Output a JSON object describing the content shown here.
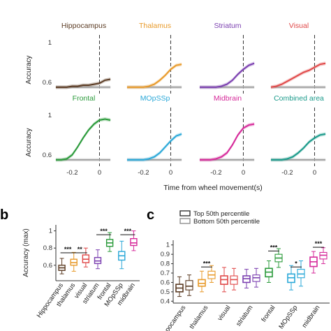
{
  "panel_letters": {
    "b": "b",
    "c": "c"
  },
  "colors": {
    "hippocampus": "#5a3a22",
    "thalamus": "#e89a2a",
    "striatum": "#7b3fb0",
    "visual": "#e04848",
    "frontal": "#2a9a3a",
    "mopssp": "#2aa8d8",
    "midbrain": "#d62a9a",
    "combined": "#1a9a8a",
    "chance": "#8a8a8a",
    "dashed": "#333333"
  },
  "icons": {
    "significance": "asterisk-icon"
  },
  "chart_data": [
    {
      "type": "line",
      "id": "a",
      "ylabel": "Accuracy",
      "xlabel": "Time from wheel movement(s)",
      "x": [
        -0.32,
        -0.28,
        -0.24,
        -0.2,
        -0.16,
        -0.12,
        -0.08,
        -0.04,
        0.0,
        0.04,
        0.08
      ],
      "xlim": [
        -0.33,
        0.1
      ],
      "ylim": [
        0.5,
        1.02
      ],
      "yticks": [
        0.6,
        1
      ],
      "ytick_labels": [
        "0.6",
        "1"
      ],
      "xticks": [
        -0.2,
        0
      ],
      "xtick_labels": [
        "-0.2",
        "0"
      ],
      "chance": [
        0.55,
        0.55,
        0.55,
        0.55,
        0.55,
        0.55,
        0.55,
        0.55,
        0.55,
        0.55,
        0.55
      ],
      "panels": [
        {
          "name": "Hippocampus",
          "color_key": "hippocampus",
          "values": [
            0.55,
            0.55,
            0.55,
            0.56,
            0.56,
            0.57,
            0.57,
            0.58,
            0.59,
            0.62,
            0.63
          ]
        },
        {
          "name": "Thalamus",
          "color_key": "thalamus",
          "values": [
            0.55,
            0.55,
            0.55,
            0.55,
            0.56,
            0.58,
            0.62,
            0.67,
            0.73,
            0.77,
            0.78
          ]
        },
        {
          "name": "Striatum",
          "color_key": "striatum",
          "values": [
            0.55,
            0.55,
            0.55,
            0.55,
            0.56,
            0.58,
            0.62,
            0.68,
            0.73,
            0.77,
            0.79
          ]
        },
        {
          "name": "Visual",
          "color_key": "visual",
          "values": [
            0.55,
            0.56,
            0.58,
            0.61,
            0.64,
            0.67,
            0.7,
            0.72,
            0.75,
            0.78,
            0.79
          ]
        },
        {
          "name": "Frontal",
          "color_key": "frontal",
          "values": [
            0.55,
            0.55,
            0.56,
            0.6,
            0.68,
            0.77,
            0.85,
            0.91,
            0.95,
            0.96,
            0.95
          ]
        },
        {
          "name": "MOpSSp",
          "color_key": "mopssp",
          "values": [
            0.55,
            0.55,
            0.55,
            0.55,
            0.56,
            0.58,
            0.62,
            0.68,
            0.74,
            0.79,
            0.81
          ]
        },
        {
          "name": "Midbrain",
          "color_key": "midbrain",
          "values": [
            0.55,
            0.55,
            0.55,
            0.56,
            0.58,
            0.62,
            0.7,
            0.8,
            0.87,
            0.9,
            0.91
          ]
        },
        {
          "name": "Combined area",
          "color_key": "combined",
          "values": [
            0.55,
            0.55,
            0.55,
            0.56,
            0.58,
            0.62,
            0.67,
            0.73,
            0.77,
            0.8,
            0.81
          ]
        }
      ]
    },
    {
      "type": "box",
      "id": "b",
      "ylabel": "Accuracy (max)",
      "ylim": [
        0.42,
        1.07
      ],
      "yticks": [
        0.6,
        0.8,
        1
      ],
      "ytick_labels": [
        "0.6",
        "0.8",
        "1"
      ],
      "categories": [
        "Hippocampus",
        "thalamus",
        "visual",
        "striatum",
        "frontal",
        "MOpSSp",
        "midbrain"
      ],
      "tick_labels": [
        "Hippocampus",
        "thalamus",
        "visual",
        "striatum",
        "frontal",
        "MOpSSp",
        "midbrain"
      ],
      "color_keys": [
        "hippocampus",
        "thalamus",
        "visual",
        "striatum",
        "frontal",
        "mopssp",
        "midbrain"
      ],
      "boxes": [
        {
          "min": 0.5,
          "q1": 0.54,
          "median": 0.57,
          "q3": 0.6,
          "max": 0.68
        },
        {
          "min": 0.53,
          "q1": 0.6,
          "median": 0.63,
          "q3": 0.67,
          "max": 0.75
        },
        {
          "min": 0.58,
          "q1": 0.63,
          "median": 0.67,
          "q3": 0.72,
          "max": 0.8
        },
        {
          "min": 0.56,
          "q1": 0.62,
          "median": 0.65,
          "q3": 0.69,
          "max": 0.78
        },
        {
          "min": 0.76,
          "q1": 0.82,
          "median": 0.86,
          "q3": 0.9,
          "max": 0.98
        },
        {
          "min": 0.56,
          "q1": 0.66,
          "median": 0.71,
          "q3": 0.76,
          "max": 0.88
        },
        {
          "min": 0.77,
          "q1": 0.83,
          "median": 0.86,
          "q3": 0.91,
          "max": 1.0
        }
      ],
      "significance": [
        {
          "from": 0,
          "to": 1,
          "y": 0.745,
          "label": "***"
        },
        {
          "from": 1,
          "to": 2,
          "y": 0.745,
          "label": "**"
        },
        {
          "from": 3,
          "to": 4,
          "y": 0.955,
          "label": "***"
        },
        {
          "from": 5,
          "to": 6,
          "y": 0.955,
          "label": "***"
        }
      ]
    },
    {
      "type": "box",
      "id": "c",
      "ylim": [
        0.38,
        1.05
      ],
      "yticks": [
        0.4,
        0.5,
        0.6,
        0.7,
        0.8,
        0.9,
        1
      ],
      "ytick_labels": [
        "0.4",
        "0.5",
        "0.6",
        "0.7",
        "0.8",
        "0.9",
        "1"
      ],
      "legend": [
        "Top 50th percentile",
        "Bottom 50th percentile"
      ],
      "legend_position": "top-left",
      "categories": [
        "hippocampus",
        "thalamus",
        "visual",
        "striatum",
        "frontal",
        "MOpSSp",
        "midbrain"
      ],
      "tick_labels": [
        "hippocampus",
        "thalamus",
        "visual",
        "striatum",
        "frontal",
        "MOpSSp",
        "midbrain"
      ],
      "color_keys": [
        "hippocampus",
        "thalamus",
        "visual",
        "striatum",
        "frontal",
        "mopssp",
        "midbrain"
      ],
      "series": [
        {
          "name": "Top 50th percentile",
          "boxes": [
            {
              "min": 0.45,
              "q1": 0.5,
              "median": 0.54,
              "q3": 0.58,
              "max": 0.66
            },
            {
              "min": 0.5,
              "q1": 0.56,
              "median": 0.59,
              "q3": 0.63,
              "max": 0.72
            },
            {
              "min": 0.5,
              "q1": 0.58,
              "median": 0.63,
              "q3": 0.67,
              "max": 0.76
            },
            {
              "min": 0.54,
              "q1": 0.6,
              "median": 0.64,
              "q3": 0.67,
              "max": 0.74
            },
            {
              "min": 0.6,
              "q1": 0.66,
              "median": 0.71,
              "q3": 0.75,
              "max": 0.83
            },
            {
              "min": 0.52,
              "q1": 0.6,
              "median": 0.65,
              "q3": 0.69,
              "max": 0.78
            },
            {
              "min": 0.7,
              "q1": 0.77,
              "median": 0.82,
              "q3": 0.87,
              "max": 0.93
            }
          ]
        },
        {
          "name": "Bottom 50th percentile",
          "boxes": [
            {
              "min": 0.46,
              "q1": 0.52,
              "median": 0.56,
              "q3": 0.62,
              "max": 0.68
            },
            {
              "min": 0.6,
              "q1": 0.64,
              "median": 0.68,
              "q3": 0.72,
              "max": 0.78
            },
            {
              "min": 0.52,
              "q1": 0.58,
              "median": 0.63,
              "q3": 0.67,
              "max": 0.75
            },
            {
              "min": 0.55,
              "q1": 0.61,
              "median": 0.65,
              "q3": 0.68,
              "max": 0.75
            },
            {
              "min": 0.76,
              "q1": 0.82,
              "median": 0.86,
              "q3": 0.9,
              "max": 0.96
            },
            {
              "min": 0.56,
              "q1": 0.65,
              "median": 0.69,
              "q3": 0.74,
              "max": 0.83
            },
            {
              "min": 0.8,
              "q1": 0.85,
              "median": 0.89,
              "q3": 0.92,
              "max": 0.97
            }
          ]
        }
      ],
      "significance": [
        {
          "category": 1,
          "y": 0.765,
          "label": "***"
        },
        {
          "category": 4,
          "y": 0.935,
          "label": "***"
        },
        {
          "category": 5,
          "y": 0.765,
          "label": "*"
        },
        {
          "category": 6,
          "y": 0.975,
          "label": "***"
        }
      ]
    }
  ]
}
